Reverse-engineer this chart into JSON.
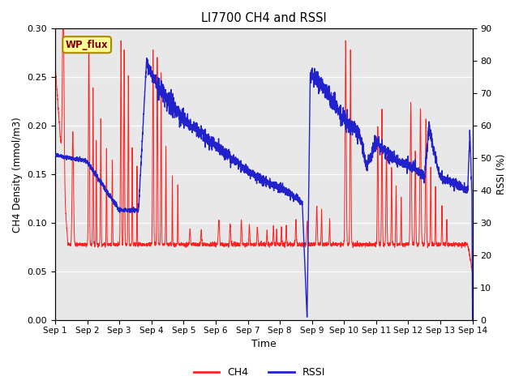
{
  "title": "LI7700 CH4 and RSSI",
  "xlabel": "Time",
  "ylabel_left": "CH4 Density (mmol/m3)",
  "ylabel_right": "RSSI (%)",
  "ylim_left": [
    0.0,
    0.3
  ],
  "ylim_right": [
    0,
    90
  ],
  "yticks_left": [
    0.0,
    0.05,
    0.1,
    0.15,
    0.2,
    0.25,
    0.3
  ],
  "yticks_right": [
    0,
    10,
    20,
    30,
    40,
    50,
    60,
    70,
    80,
    90
  ],
  "xtick_labels": [
    "Sep 1",
    "Sep 2",
    "Sep 3",
    "Sep 4",
    "Sep 5",
    "Sep 6",
    "Sep 7",
    "Sep 8",
    "Sep 9",
    "Sep 10",
    "Sep 11",
    "Sep 12",
    "Sep 13",
    "Sep 14"
  ],
  "ch4_color": "#FF2020",
  "rssi_color": "#2222CC",
  "bg_color": "#E8E8E8",
  "fig_bg_color": "#FFFFFF",
  "legend_label_ch4": "CH4",
  "legend_label_rssi": "RSSI",
  "wp_flux_label": "WP_flux",
  "wp_flux_bg": "#FFFF99",
  "wp_flux_border": "#AA8800"
}
